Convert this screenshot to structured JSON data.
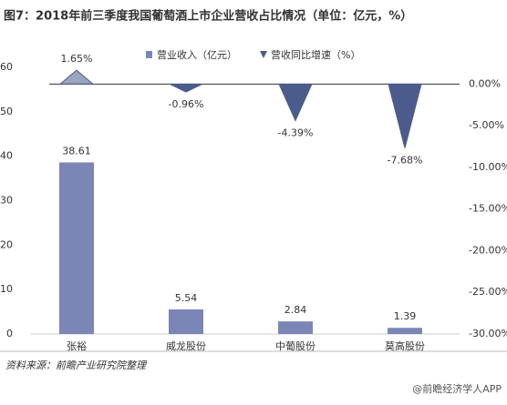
{
  "chart_data": {
    "type": "bar-spike",
    "title": "图7：2018年前三季度我国葡萄酒上市企业营收占比情况（单位：亿元，%）",
    "categories": [
      "张裕",
      "威龙股份",
      "中葡股份",
      "莫高股份"
    ],
    "series": [
      {
        "name": "营业收入（亿元）",
        "color": "#7a86b6",
        "values": [
          38.61,
          5.54,
          2.84,
          1.39
        ]
      },
      {
        "name": "营收同比增速（%）",
        "color": "#4b5b8c",
        "axis": "y2",
        "values": [
          1.65,
          -0.96,
          -4.39,
          -7.68
        ],
        "value_labels": [
          "1.65%",
          "-0.96%",
          "-4.39%",
          "-7.68%"
        ]
      }
    ],
    "ylim": [
      0,
      60
    ],
    "yticks": [
      0,
      10,
      20,
      30,
      40,
      50,
      60
    ],
    "y2lim": [
      -30,
      2
    ],
    "y2ticks": [
      {
        "value": 0,
        "label": "0.00%"
      },
      {
        "value": -5,
        "label": "-5.00%"
      },
      {
        "value": -10,
        "label": "-10.00%"
      },
      {
        "value": -15,
        "label": "-15.00%"
      },
      {
        "value": -20,
        "label": "-20.00%"
      },
      {
        "value": -25,
        "label": "-25.00%"
      },
      {
        "value": -30,
        "label": "-30.00%"
      }
    ],
    "source": "资料来源：前瞻产业研究院整理",
    "watermark": "@前瞻经济学人APP"
  }
}
